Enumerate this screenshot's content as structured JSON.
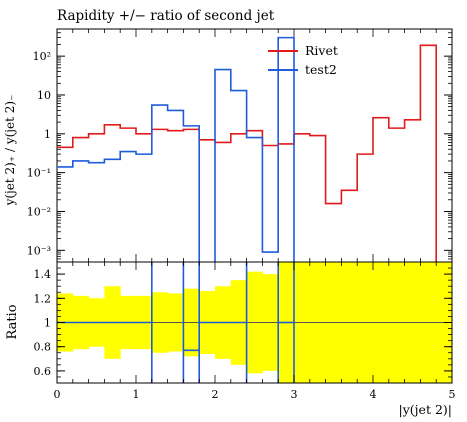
{
  "chart_data": [
    {
      "type": "line",
      "title": "Rapidity +/− ratio of second jet",
      "ylabel": "y(jet 2)₊ / y(jet 2)₋",
      "xlabel": "",
      "yscale": "log",
      "xlim": [
        0,
        5
      ],
      "ylim": [
        0.0005,
        500
      ],
      "grid": false,
      "legend_position": "top-right",
      "ytick_labels": [
        "10⁻³",
        "10⁻²",
        "10⁻¹",
        "1",
        "10",
        "10²"
      ],
      "x_edges": [
        0,
        0.2,
        0.4,
        0.6,
        0.8,
        1.0,
        1.2,
        1.4,
        1.6,
        1.8,
        2.0,
        2.2,
        2.4,
        2.6,
        2.8,
        3.0,
        3.2,
        3.4,
        3.6,
        3.8,
        4.0,
        4.2,
        4.4,
        4.6,
        4.8,
        5.0
      ],
      "series": [
        {
          "name": "Rivet",
          "color": "#e31a1c",
          "values": [
            0.45,
            0.8,
            1.0,
            1.7,
            1.4,
            1.0,
            1.3,
            1.2,
            1.3,
            0.7,
            0.6,
            1.0,
            1.2,
            0.5,
            0.55,
            1.0,
            0.9,
            0.016,
            0.035,
            0.3,
            2.6,
            1.4,
            2.3,
            190,
            0.0001
          ]
        },
        {
          "name": "test2",
          "color": "#1f5bdb",
          "values": [
            0.14,
            0.2,
            0.18,
            0.22,
            0.35,
            0.3,
            5.5,
            4.0,
            1.6,
            0.0001,
            45,
            13,
            0.8,
            0.0009,
            300,
            0.0001,
            null,
            null,
            null,
            null,
            null,
            null,
            null,
            null,
            null
          ]
        }
      ]
    },
    {
      "type": "line",
      "title": "",
      "ylabel": "Ratio",
      "xlabel": "|y(jet 2)|",
      "xlim": [
        0,
        5
      ],
      "ylim": [
        0.5,
        1.5
      ],
      "ytick_labels": [
        "0.6",
        "0.8",
        "1",
        "1.2",
        "1.4"
      ],
      "xtick_labels": [
        "0",
        "1",
        "2",
        "3",
        "4",
        "5"
      ],
      "band_color": "#ffff00",
      "band_edges": [
        0,
        0.2,
        0.4,
        0.6,
        0.8,
        1.0,
        1.2,
        1.4,
        1.6,
        1.8,
        2.0,
        2.2,
        2.4,
        2.6,
        2.8,
        3.0,
        5.0
      ],
      "band_half_width": [
        0.24,
        0.22,
        0.2,
        0.3,
        0.22,
        0.22,
        0.25,
        0.24,
        0.28,
        0.26,
        0.3,
        0.35,
        0.42,
        0.4,
        0.5,
        0.6
      ],
      "reference_value": 1,
      "ratio_edges": [
        0,
        1.2,
        1.2,
        1.6,
        1.6,
        1.8,
        1.8,
        2.4,
        2.4,
        2.8,
        2.8,
        3.0
      ],
      "ratio_segments": [
        {
          "x0": 0,
          "x1": 1.2,
          "value": 1
        },
        {
          "x0": 1.6,
          "x1": 1.8,
          "value": 0.77
        },
        {
          "x0": 1.8,
          "x1": 2.4,
          "value": 1
        },
        {
          "x0": 2.8,
          "x1": 3.0,
          "value": 1
        }
      ],
      "ratio_vertical_lines": [
        1.2,
        1.6,
        1.8,
        2.4,
        2.8,
        3.0
      ]
    }
  ]
}
